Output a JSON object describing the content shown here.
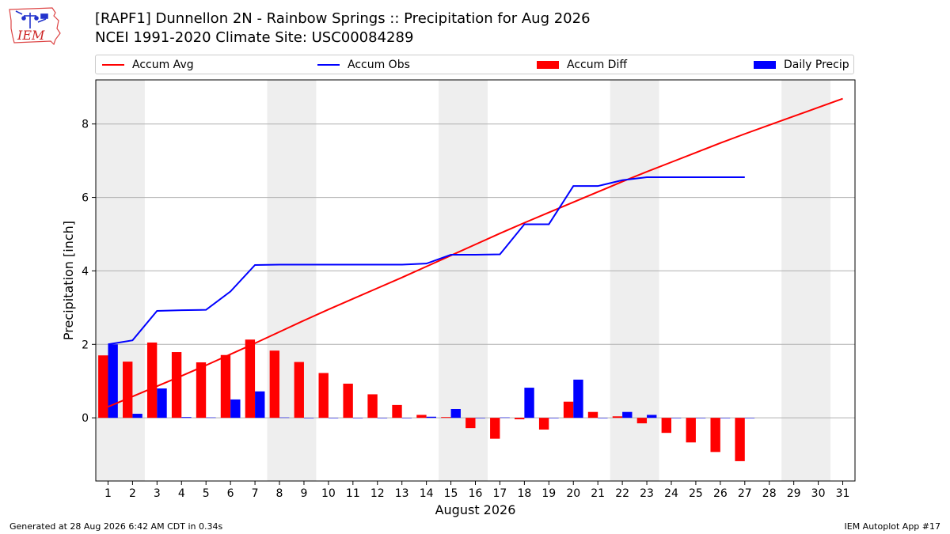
{
  "header": {
    "logo_text": "IEM",
    "title_line1": "[RAPF1] Dunnellon 2N - Rainbow Springs :: Precipitation for Aug 2026",
    "title_line2": "NCEI 1991-2020 Climate Site: USC00084289"
  },
  "legend": {
    "items": [
      {
        "label": "Accum Avg",
        "kind": "line",
        "color": "#ff0000"
      },
      {
        "label": "Accum Obs",
        "kind": "line",
        "color": "#0000ff"
      },
      {
        "label": "Accum Diff",
        "kind": "box",
        "color": "#ff0000"
      },
      {
        "label": "Daily Precip",
        "kind": "box",
        "color": "#0000ff"
      }
    ]
  },
  "footer": {
    "left": "Generated at 28 Aug 2026 6:42 AM CDT in 0.34s",
    "right": "IEM Autoplot App #17"
  },
  "chart_data": {
    "type": "bar",
    "xlabel": "August 2026",
    "ylabel": "Precipitation [inch]",
    "xlim": [
      0.5,
      31.5
    ],
    "ylim": [
      -1.72,
      9.2
    ],
    "yticks": [
      0,
      2,
      4,
      6,
      8
    ],
    "grid": "horizontal",
    "legend_position": "top",
    "days": [
      1,
      2,
      3,
      4,
      5,
      6,
      7,
      8,
      9,
      10,
      11,
      12,
      13,
      14,
      15,
      16,
      17,
      18,
      19,
      20,
      21,
      22,
      23,
      24,
      25,
      26,
      27,
      28,
      29,
      30,
      31
    ],
    "weekend_shading": [
      [
        0.5,
        2.5
      ],
      [
        7.5,
        9.5
      ],
      [
        14.5,
        16.5
      ],
      [
        21.5,
        23.5
      ],
      [
        28.5,
        30.5
      ]
    ],
    "accum_avg": [
      0.3,
      0.58,
      0.86,
      1.14,
      1.43,
      1.73,
      2.03,
      2.34,
      2.65,
      2.95,
      3.24,
      3.53,
      3.82,
      4.12,
      4.42,
      4.72,
      5.02,
      5.31,
      5.59,
      5.87,
      6.15,
      6.43,
      6.7,
      6.96,
      7.22,
      7.48,
      7.73,
      7.97,
      8.21,
      8.45,
      8.69
    ],
    "accum_obs": [
      2.0,
      2.11,
      2.91,
      2.93,
      2.94,
      3.44,
      4.16,
      4.17,
      4.17,
      4.17,
      4.17,
      4.17,
      4.17,
      4.2,
      4.44,
      4.44,
      4.45,
      5.27,
      5.27,
      6.31,
      6.31,
      6.47,
      6.55,
      6.55,
      6.55,
      6.55,
      6.55
    ],
    "accum_diff": [
      1.7,
      1.53,
      2.05,
      1.79,
      1.51,
      1.71,
      2.13,
      1.83,
      1.52,
      1.22,
      0.93,
      0.64,
      0.35,
      0.08,
      0.02,
      -0.28,
      -0.57,
      -0.04,
      -0.32,
      0.44,
      0.16,
      0.04,
      -0.15,
      -0.41,
      -0.67,
      -0.93,
      -1.18
    ],
    "daily_precip": [
      2.0,
      0.11,
      0.8,
      0.02,
      0.01,
      0.5,
      0.72,
      0.01,
      0.0,
      0.0,
      0.0,
      0.0,
      0.0,
      0.03,
      0.24,
      0.0,
      0.01,
      0.82,
      0.0,
      1.04,
      0.0,
      0.16,
      0.08,
      0.0,
      0.0,
      0.0,
      0.0
    ],
    "colors": {
      "accum_avg": "#ff0000",
      "accum_obs": "#0000ff",
      "accum_diff": "#ff0000",
      "daily_precip": "#0000ff",
      "weekend": "#eeeeee",
      "grid": "#b0b0b0"
    }
  }
}
